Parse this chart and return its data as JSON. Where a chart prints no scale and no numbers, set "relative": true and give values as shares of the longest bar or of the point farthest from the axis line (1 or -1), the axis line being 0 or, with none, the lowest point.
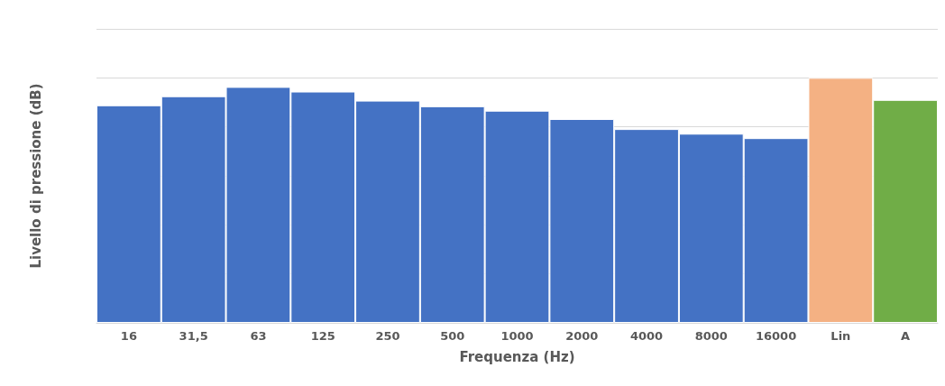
{
  "chart_data": {
    "type": "bar",
    "xlabel": "Frequenza (Hz)",
    "ylabel": "Livello di pressione (dB)",
    "relative": true,
    "grid": "y",
    "categories": [
      "16",
      "31,5",
      "63",
      "125",
      "250",
      "500",
      "1000",
      "2000",
      "4000",
      "8000",
      "16000",
      "Lin",
      "A"
    ],
    "values": [
      0.888,
      0.925,
      0.963,
      0.944,
      0.907,
      0.884,
      0.866,
      0.832,
      0.791,
      0.772,
      0.754,
      1,
      0.91
    ],
    "colors": [
      "#4472c4",
      "#4472c4",
      "#4472c4",
      "#4472c4",
      "#4472c4",
      "#4472c4",
      "#4472c4",
      "#4472c4",
      "#4472c4",
      "#4472c4",
      "#4472c4",
      "#f4b183",
      "#70ad47"
    ]
  }
}
